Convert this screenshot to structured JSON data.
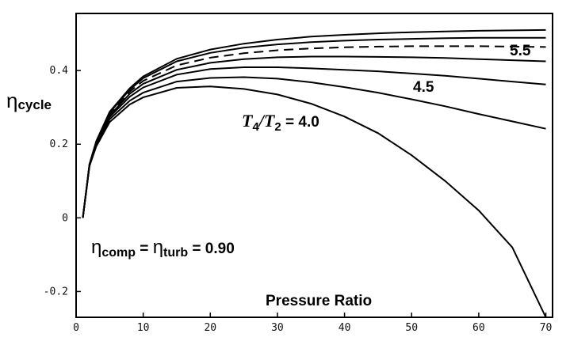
{
  "chart_data": {
    "type": "line",
    "xlabel": "Pressure Ratio",
    "ylabel_main": "η",
    "ylabel_sub": "cycle",
    "xlim": [
      0,
      71
    ],
    "ylim": [
      -0.27,
      0.555
    ],
    "x_ticks": [
      0,
      10,
      20,
      30,
      40,
      50,
      60,
      70
    ],
    "y_ticks": [
      -0.2,
      0,
      0.2,
      0.4
    ],
    "x_tick_labels": [
      "0",
      "10",
      "20",
      "30",
      "40",
      "50",
      "60",
      "70"
    ],
    "y_tick_labels": [
      "-0.2",
      "0",
      "0.2",
      "0.4"
    ],
    "grid": false,
    "annotations": {
      "efficiency": {
        "eta1": "η",
        "sub1": "comp",
        "eq1": " = ",
        "eta2": "η",
        "sub2": "turb",
        "eq2": " = 0.90"
      },
      "t_ratio": {
        "t4": "T",
        "sub4": "4",
        "slash": "/",
        "t2": "T",
        "sub2": "2",
        "eq": " = 4.0"
      },
      "label_45": "4.5",
      "label_55": "5.5"
    },
    "series": [
      {
        "style": "solid",
        "x": [
          1,
          2,
          3,
          5,
          8,
          10,
          15,
          20,
          25,
          30,
          35,
          40,
          45,
          50,
          55,
          60,
          65,
          70
        ],
        "y": [
          0,
          0.141,
          0.194,
          0.26,
          0.308,
          0.327,
          0.353,
          0.357,
          0.35,
          0.335,
          0.31,
          0.275,
          0.23,
          0.17,
          0.1,
          0.02,
          -0.08,
          -0.27
        ]
      },
      {
        "style": "solid",
        "x": [
          1,
          2,
          3,
          5,
          8,
          10,
          15,
          20,
          25,
          30,
          35,
          40,
          45,
          50,
          55,
          60,
          65,
          70
        ],
        "y": [
          0,
          0.142,
          0.198,
          0.268,
          0.318,
          0.34,
          0.37,
          0.38,
          0.382,
          0.378,
          0.368,
          0.355,
          0.34,
          0.322,
          0.303,
          0.282,
          0.262,
          0.242
        ]
      },
      {
        "style": "solid",
        "x": [
          1,
          2,
          3,
          5,
          8,
          10,
          15,
          20,
          25,
          30,
          35,
          40,
          45,
          50,
          55,
          60,
          65,
          70
        ],
        "y": [
          0,
          0.143,
          0.201,
          0.274,
          0.329,
          0.354,
          0.389,
          0.404,
          0.409,
          0.409,
          0.406,
          0.402,
          0.398,
          0.392,
          0.386,
          0.378,
          0.37,
          0.362
        ]
      },
      {
        "style": "solid",
        "x": [
          1,
          2,
          3,
          5,
          8,
          10,
          15,
          20,
          25,
          30,
          35,
          40,
          45,
          50,
          55,
          60,
          65,
          70
        ],
        "y": [
          0,
          0.144,
          0.203,
          0.278,
          0.337,
          0.364,
          0.402,
          0.421,
          0.431,
          0.436,
          0.438,
          0.438,
          0.437,
          0.436,
          0.434,
          0.431,
          0.428,
          0.425
        ]
      },
      {
        "style": "dashed",
        "x": [
          1,
          2,
          3,
          5,
          8,
          10,
          15,
          20,
          25,
          30,
          35,
          40,
          45,
          50,
          55,
          60,
          65,
          70
        ],
        "y": [
          0,
          0.145,
          0.205,
          0.282,
          0.343,
          0.372,
          0.414,
          0.435,
          0.447,
          0.455,
          0.46,
          0.463,
          0.465,
          0.466,
          0.466,
          0.466,
          0.465,
          0.464
        ]
      },
      {
        "style": "solid",
        "x": [
          1,
          2,
          3,
          5,
          8,
          10,
          15,
          20,
          25,
          30,
          35,
          40,
          45,
          50,
          55,
          60,
          65,
          70
        ],
        "y": [
          0,
          0.146,
          0.207,
          0.286,
          0.348,
          0.379,
          0.425,
          0.448,
          0.462,
          0.471,
          0.477,
          0.481,
          0.484,
          0.486,
          0.488,
          0.489,
          0.489,
          0.489
        ]
      },
      {
        "style": "solid",
        "x": [
          1,
          2,
          3,
          5,
          8,
          10,
          15,
          20,
          25,
          30,
          35,
          40,
          45,
          50,
          55,
          60,
          65,
          70
        ],
        "y": [
          0,
          0.146,
          0.208,
          0.288,
          0.352,
          0.384,
          0.432,
          0.457,
          0.473,
          0.484,
          0.492,
          0.497,
          0.501,
          0.504,
          0.506,
          0.508,
          0.509,
          0.51
        ]
      }
    ]
  }
}
